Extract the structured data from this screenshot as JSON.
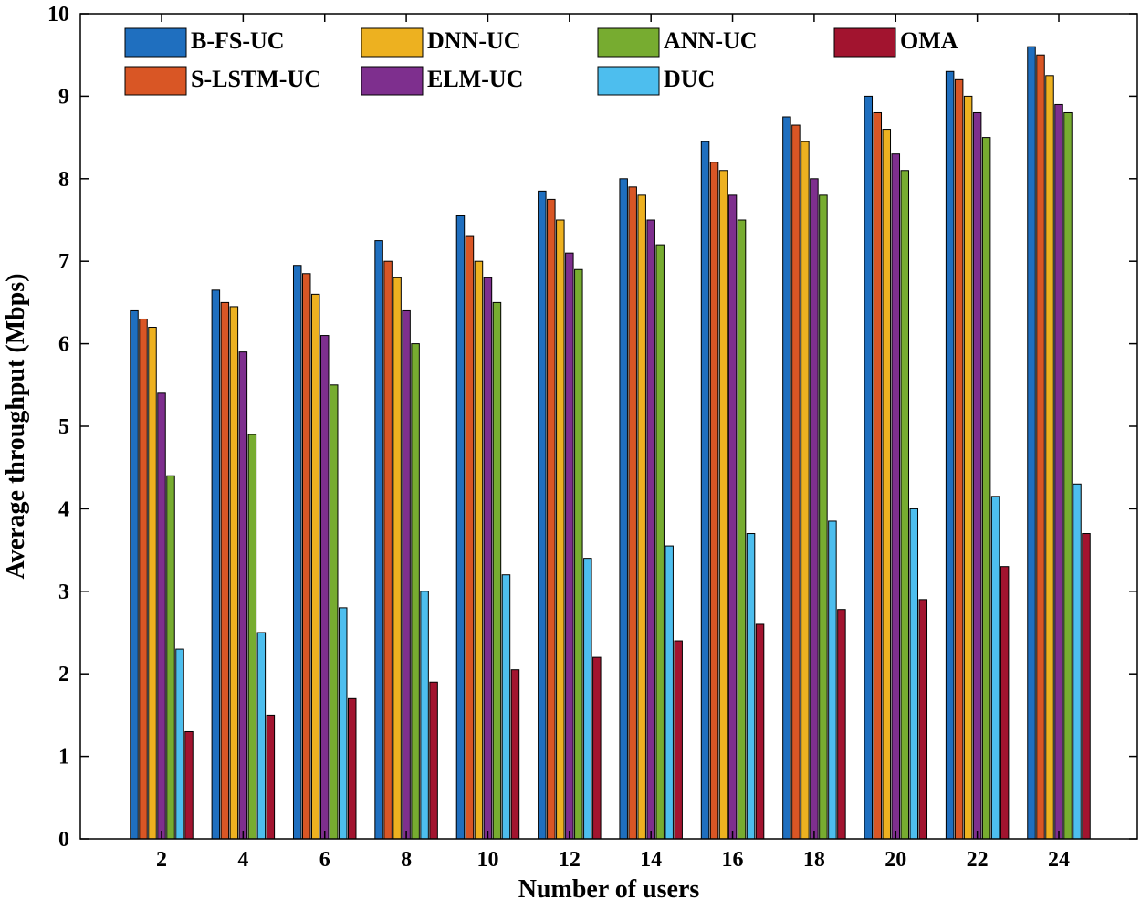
{
  "chart_data": {
    "type": "bar",
    "xlabel": "Number of users",
    "ylabel": "Average throughput (Mbps)",
    "categories": [
      "2",
      "4",
      "6",
      "8",
      "10",
      "12",
      "14",
      "16",
      "18",
      "20",
      "22",
      "24"
    ],
    "ylim": [
      0,
      10
    ],
    "yticks": [
      "0",
      "1",
      "2",
      "3",
      "4",
      "5",
      "6",
      "7",
      "8",
      "9",
      "10"
    ],
    "grid": false,
    "legend_position": "top",
    "series": [
      {
        "name": "B-FS-UC",
        "color": "#1f6fbf",
        "values": [
          6.4,
          6.65,
          6.95,
          7.25,
          7.55,
          7.85,
          8.0,
          8.45,
          8.75,
          9.0,
          9.3,
          9.6
        ]
      },
      {
        "name": "S-LSTM-UC",
        "color": "#d95625",
        "values": [
          6.3,
          6.5,
          6.85,
          7.0,
          7.3,
          7.75,
          7.9,
          8.2,
          8.65,
          8.8,
          9.2,
          9.5
        ]
      },
      {
        "name": "DNN-UC",
        "color": "#edb120",
        "values": [
          6.2,
          6.45,
          6.6,
          6.8,
          7.0,
          7.5,
          7.8,
          8.1,
          8.45,
          8.6,
          9.0,
          9.25
        ]
      },
      {
        "name": "ELM-UC",
        "color": "#7e2f8e",
        "values": [
          5.4,
          5.9,
          6.1,
          6.4,
          6.8,
          7.1,
          7.5,
          7.8,
          8.0,
          8.3,
          8.8,
          8.9
        ]
      },
      {
        "name": "ANN-UC",
        "color": "#77ac30",
        "values": [
          4.4,
          4.9,
          5.5,
          6.0,
          6.5,
          6.9,
          7.2,
          7.5,
          7.8,
          8.1,
          8.5,
          8.8
        ]
      },
      {
        "name": "DUC",
        "color": "#4dbeee",
        "values": [
          2.3,
          2.5,
          2.8,
          3.0,
          3.2,
          3.4,
          3.55,
          3.7,
          3.85,
          4.0,
          4.15,
          4.3
        ]
      },
      {
        "name": "OMA",
        "color": "#a2142f",
        "values": [
          1.3,
          1.5,
          1.7,
          1.9,
          2.05,
          2.2,
          2.4,
          2.6,
          2.78,
          2.9,
          3.3,
          3.7
        ]
      }
    ],
    "legend_order": [
      "B-FS-UC",
      "DNN-UC",
      "ANN-UC",
      "OMA",
      "S-LSTM-UC",
      "ELM-UC",
      "DUC"
    ]
  }
}
